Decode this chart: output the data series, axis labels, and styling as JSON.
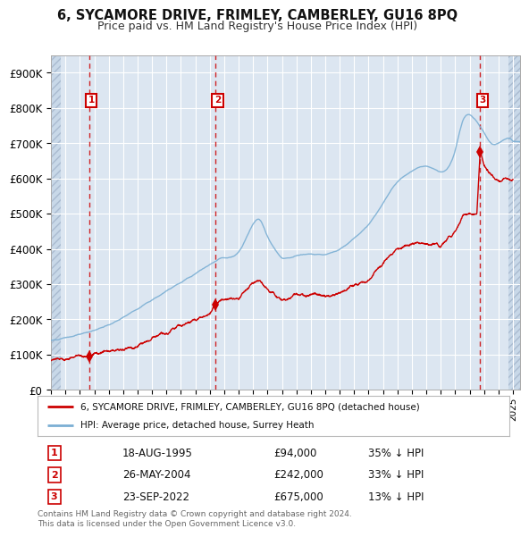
{
  "title": "6, SYCAMORE DRIVE, FRIMLEY, CAMBERLEY, GU16 8PQ",
  "subtitle": "Price paid vs. HM Land Registry's House Price Index (HPI)",
  "ylim": [
    0,
    950000
  ],
  "yticks": [
    0,
    100000,
    200000,
    300000,
    400000,
    500000,
    600000,
    700000,
    800000,
    900000
  ],
  "ytick_labels": [
    "£0",
    "£100K",
    "£200K",
    "£300K",
    "£400K",
    "£500K",
    "£600K",
    "£700K",
    "£800K",
    "£900K"
  ],
  "xlim_start": 1993.0,
  "xlim_end": 2025.5,
  "background_color": "#ffffff",
  "plot_bg_color": "#dce6f1",
  "grid_color": "#ffffff",
  "sale_color": "#cc0000",
  "hpi_color": "#7bafd4",
  "transactions": [
    {
      "num": 1,
      "date_num": 1995.63,
      "price": 94000,
      "label": "1",
      "date_str": "18-AUG-1995",
      "price_str": "£94,000",
      "hpi_pct": "35% ↓ HPI"
    },
    {
      "num": 2,
      "date_num": 2004.4,
      "price": 242000,
      "label": "2",
      "date_str": "26-MAY-2004",
      "price_str": "£242,000",
      "hpi_pct": "33% ↓ HPI"
    },
    {
      "num": 3,
      "date_num": 2022.73,
      "price": 675000,
      "label": "3",
      "date_str": "23-SEP-2022",
      "price_str": "£675,000",
      "hpi_pct": "13% ↓ HPI"
    }
  ],
  "footer": "Contains HM Land Registry data © Crown copyright and database right 2024.\nThis data is licensed under the Open Government Licence v3.0.",
  "legend_line1": "6, SYCAMORE DRIVE, FRIMLEY, CAMBERLEY, GU16 8PQ (detached house)",
  "legend_line2": "HPI: Average price, detached house, Surrey Heath",
  "hpi_anchors_x": [
    1993,
    1994,
    1995,
    1996,
    1997,
    1998,
    1999,
    2000,
    2001,
    2002,
    2003,
    2004,
    2005,
    2006,
    2007,
    2007.5,
    2008,
    2008.5,
    2009,
    2009.5,
    2010,
    2011,
    2012,
    2013,
    2014,
    2015,
    2016,
    2017,
    2018,
    2019,
    2020,
    2021,
    2021.5,
    2022,
    2022.5,
    2023,
    2023.5,
    2024,
    2025
  ],
  "hpi_anchors_y": [
    140000,
    148000,
    158000,
    170000,
    185000,
    205000,
    230000,
    255000,
    280000,
    305000,
    330000,
    355000,
    375000,
    390000,
    470000,
    480000,
    435000,
    400000,
    375000,
    375000,
    380000,
    385000,
    385000,
    400000,
    430000,
    470000,
    530000,
    590000,
    620000,
    635000,
    620000,
    680000,
    760000,
    780000,
    760000,
    730000,
    700000,
    700000,
    705000
  ],
  "red_anchors_x": [
    1993,
    1994,
    1995,
    1995.63,
    1996,
    1997,
    1998,
    1999,
    2000,
    2001,
    2002,
    2003,
    2004,
    2004.4,
    2005,
    2006,
    2007,
    2007.5,
    2008,
    2009,
    2010,
    2011,
    2012,
    2013,
    2014,
    2015,
    2016,
    2017,
    2018,
    2019,
    2020,
    2021,
    2021.5,
    2022,
    2022.5,
    2022.73,
    2023,
    2023.5,
    2024,
    2025
  ],
  "red_anchors_y": [
    85000,
    90000,
    95000,
    94000,
    100000,
    110000,
    115000,
    125000,
    145000,
    165000,
    185000,
    200000,
    215000,
    242000,
    255000,
    260000,
    305000,
    310000,
    285000,
    255000,
    270000,
    270000,
    265000,
    275000,
    295000,
    310000,
    360000,
    400000,
    415000,
    415000,
    410000,
    445000,
    490000,
    500000,
    500000,
    675000,
    635000,
    610000,
    595000,
    600000
  ]
}
